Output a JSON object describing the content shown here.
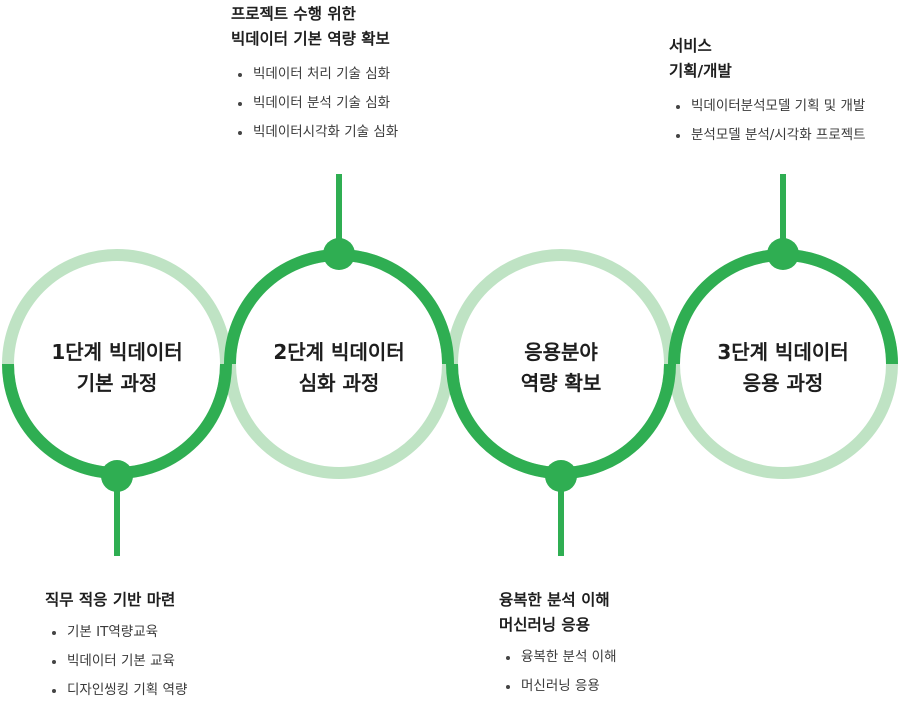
{
  "colors": {
    "dark": "#2fae52",
    "light": "#bfe3c4"
  },
  "stages": [
    {
      "line1": "1단계 빅데이터",
      "line2": "기본 과정"
    },
    {
      "line1": "2단계 빅데이터",
      "line2": "심화 과정"
    },
    {
      "line1": "응용분야",
      "line2": "역량 확보"
    },
    {
      "line1": "3단계 빅데이터",
      "line2": "응용 과정"
    }
  ],
  "callouts": {
    "stage1": {
      "title1": "직무 적응 기반 마련",
      "items": [
        "기본 IT역량교육",
        "빅데이터 기본 교육",
        "디자인씽킹 기획 역량"
      ]
    },
    "stage2": {
      "title1": "프로젝트 수행 위한",
      "title2": "빅데이터 기본 역량 확보",
      "items": [
        "빅데이터 처리 기술 심화",
        "빅데이터 분석 기술 심화",
        "빅데이터시각화 기술 심화"
      ]
    },
    "stage3": {
      "title1": "융복한 분석 이해",
      "title2": "머신러닝 응용",
      "items": [
        "융복한 분석 이해",
        "머신러닝 응용"
      ]
    },
    "stage4": {
      "title1": "서비스",
      "title2": "기획/개발",
      "items": [
        "빅데이터분석모델 기획 및 개발",
        "분석모델 분석/시각화 프로젝트"
      ]
    }
  }
}
